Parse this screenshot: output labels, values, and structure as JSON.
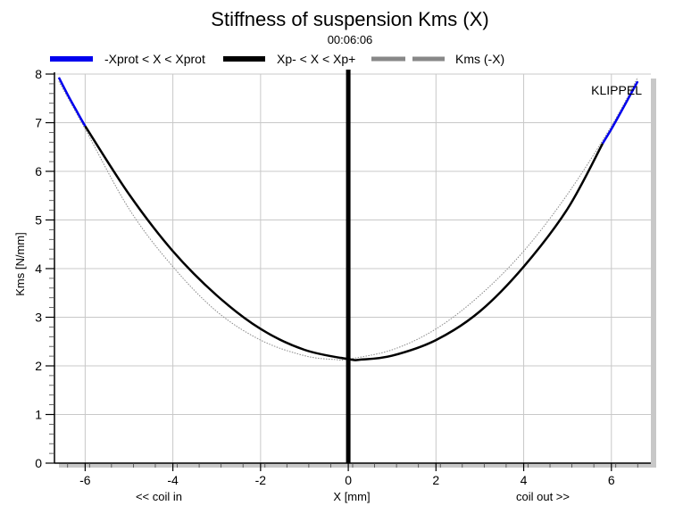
{
  "chart_data": {
    "type": "line",
    "title": "Stiffness of suspension Kms (X)",
    "subtitle": "00:06:06",
    "watermark": "KLIPPEL",
    "xlabel": "X [mm]",
    "xlabel_left": "<< coil in",
    "xlabel_right": "coil out >>",
    "ylabel": "Kms [N/mm]",
    "xlim": [
      -6.7,
      6.9
    ],
    "ylim": [
      0,
      8
    ],
    "xticks": [
      -6,
      -4,
      -2,
      0,
      2,
      4,
      6
    ],
    "yticks": [
      0,
      1,
      2,
      3,
      4,
      5,
      6,
      7,
      8
    ],
    "grid": true,
    "legend_position": "top",
    "vertical_marker_x": 0,
    "series": [
      {
        "name": "-Xprot < X < Xprot",
        "color": "#0000ee",
        "style": "solid-thick",
        "x": [
          -6.6,
          -6.4,
          -6.2,
          -6.0,
          5.8,
          6.0,
          6.2,
          6.4,
          6.6
        ],
        "y": [
          7.93,
          7.58,
          7.25,
          6.93,
          6.57,
          6.87,
          7.19,
          7.52,
          7.85
        ]
      },
      {
        "name": "Xp- < X < Xp+",
        "color": "#000000",
        "style": "solid-thick",
        "x": [
          -6.0,
          -5.0,
          -4.0,
          -3.0,
          -2.0,
          -1.0,
          0.0,
          0.3,
          1.0,
          2.0,
          3.0,
          4.0,
          5.0,
          5.8
        ],
        "y": [
          6.93,
          5.53,
          4.36,
          3.45,
          2.76,
          2.33,
          2.14,
          2.13,
          2.21,
          2.53,
          3.12,
          4.04,
          5.23,
          6.57
        ]
      },
      {
        "name": "Kms (-X)",
        "color": "#888888",
        "style": "dotted-thin",
        "x": [
          -6.6,
          -6.0,
          -5.0,
          -4.0,
          -3.0,
          -2.0,
          -1.0,
          -0.3,
          0.0,
          1.0,
          2.0,
          3.0,
          4.0,
          5.0,
          6.0,
          6.6
        ],
        "y": [
          7.85,
          6.87,
          5.23,
          4.04,
          3.12,
          2.53,
          2.21,
          2.13,
          2.14,
          2.33,
          2.76,
          3.45,
          4.36,
          5.53,
          6.93,
          7.93
        ]
      }
    ]
  }
}
